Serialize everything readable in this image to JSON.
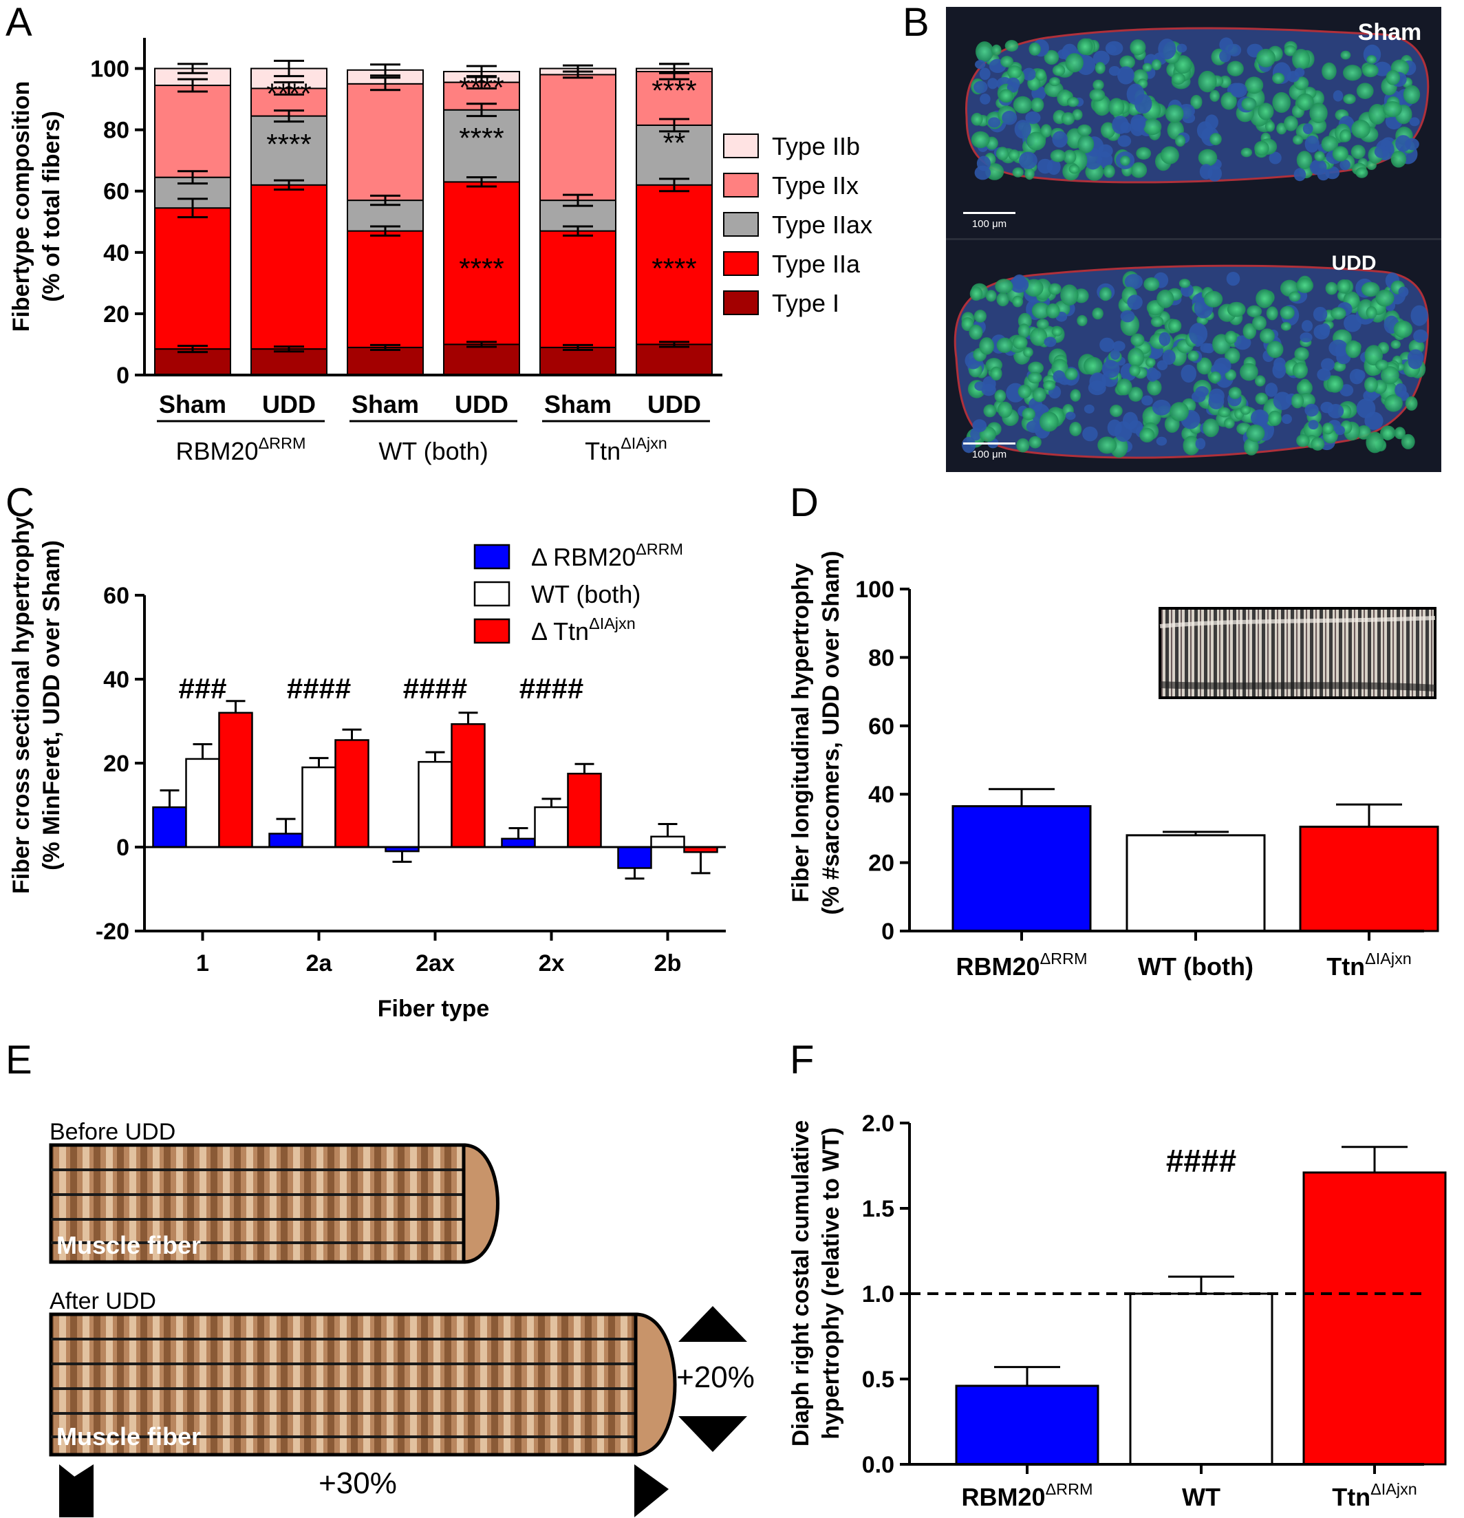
{
  "panels": {
    "A": "A",
    "B": "B",
    "C": "C",
    "D": "D",
    "E": "E",
    "F": "F"
  },
  "colors": {
    "type_i": "#a30000",
    "type_iia": "#ff0000",
    "type_iiax": "#a6a6a6",
    "type_iix": "#ff8080",
    "type_iib": "#ffe3e3",
    "rbm20": "#0000ff",
    "wt": "#ffffff",
    "ttn": "#ff0000",
    "fiber_tan": "#c8946a",
    "micro_bg": "#141826"
  },
  "chart_data": [
    {
      "panel": "A",
      "type": "bar",
      "stacked": true,
      "ylabel_line1": "Fibertype composition",
      "ylabel_line2": "(% of total fibers)",
      "ylim": [
        0,
        110
      ],
      "yticks": [
        "0",
        "20",
        "40",
        "60",
        "80",
        "100"
      ],
      "categories": [
        "Sham",
        "UDD",
        "Sham",
        "UDD",
        "Sham",
        "UDD"
      ],
      "groups": [
        {
          "name": "RBM20",
          "sup": "ΔRRM"
        },
        {
          "name": "WT (both)",
          "sup": ""
        },
        {
          "name": "Ttn",
          "sup": "ΔIAjxn"
        }
      ],
      "series": [
        {
          "name": "Type I",
          "values": [
            8.5,
            8.5,
            9,
            10,
            9,
            10
          ]
        },
        {
          "name": "Type IIa",
          "values": [
            46,
            53.5,
            38,
            53,
            38,
            52
          ]
        },
        {
          "name": "Type IIax",
          "values": [
            10,
            22.5,
            10,
            23.5,
            10,
            19.5
          ]
        },
        {
          "name": "Type IIx",
          "values": [
            30,
            9,
            38,
            9,
            41,
            17.5
          ]
        },
        {
          "name": "Type IIb",
          "values": [
            5.5,
            6.5,
            4.5,
            3.5,
            2,
            1
          ]
        }
      ],
      "legend": [
        "Type IIb",
        "Type IIx",
        "Type IIax",
        "Type IIa",
        "Type I"
      ],
      "annotations": [
        "****",
        "****",
        "****",
        "****",
        "****",
        "****",
        "**",
        "****"
      ]
    },
    {
      "panel": "C",
      "type": "bar",
      "ylabel_line1": "Fiber cross sectional hypertrophy",
      "ylabel_line2": "(% MinFeret, UDD over Sham)",
      "xlabel": "Fiber type",
      "ylim": [
        -20,
        60
      ],
      "yticks": [
        "-20",
        "0",
        "20",
        "40",
        "60"
      ],
      "categories": [
        "1",
        "2a",
        "2ax",
        "2x",
        "2b"
      ],
      "series": [
        {
          "name": "Δ RBM20",
          "sup": "ΔRRM",
          "values": [
            9.5,
            3.2,
            -1,
            2,
            -5
          ],
          "errors": [
            4,
            3.5,
            2.5,
            2.5,
            2.5
          ]
        },
        {
          "name": "WT (both)",
          "sup": "",
          "values": [
            21,
            19,
            20.3,
            9.5,
            2.5
          ],
          "errors": [
            3.5,
            2.2,
            2.3,
            2,
            3
          ]
        },
        {
          "name": "Δ Ttn",
          "sup": "ΔIAjxn",
          "values": [
            32,
            25.5,
            29.3,
            17.5,
            -1.2
          ],
          "errors": [
            2.8,
            2.5,
            2.7,
            2.3,
            5
          ]
        }
      ],
      "annotations": [
        "###",
        "####",
        "####",
        "####"
      ]
    },
    {
      "panel": "D",
      "type": "bar",
      "ylabel_line1": "Fiber longitudinal hypertrophy",
      "ylabel_line2": "(% #sarcomers, UDD over Sham)",
      "ylim": [
        0,
        100
      ],
      "yticks": [
        "0",
        "20",
        "40",
        "60",
        "80",
        "100"
      ],
      "categories": [
        {
          "name": "RBM20",
          "sup": "ΔRRM"
        },
        {
          "name": "WT (both)",
          "sup": ""
        },
        {
          "name": "Ttn",
          "sup": "ΔIAjxn"
        }
      ],
      "values": [
        36.5,
        28,
        30.5
      ],
      "errors": [
        5,
        1,
        6.5
      ]
    },
    {
      "panel": "F",
      "type": "bar",
      "ylabel_line1": "Diaph right costal cumulative",
      "ylabel_line2": "hypertrophy (relative to WT)",
      "ylim": [
        0,
        2.0
      ],
      "yticks": [
        "0.0",
        "0.5",
        "1.0",
        "1.5",
        "2.0"
      ],
      "categories": [
        {
          "name": "RBM20",
          "sup": "ΔRRM"
        },
        {
          "name": "WT",
          "sup": ""
        },
        {
          "name": "Ttn",
          "sup": "ΔIAjxn"
        }
      ],
      "values": [
        0.46,
        1.0,
        1.71
      ],
      "errors": [
        0.11,
        0.1,
        0.15
      ],
      "reference_line": 1.0,
      "annotations": [
        "####"
      ]
    }
  ],
  "micrograph": {
    "top_label": "Sham",
    "bottom_label": "UDD",
    "scale_top": "100 μm",
    "scale_bottom": "100 μm"
  },
  "schematic": {
    "before_label": "Before UDD",
    "after_label": "After UDD",
    "fiber_label_1": "Muscle fiber",
    "fiber_label_2": "Muscle fiber",
    "length_change": "+30%",
    "width_change": "+20%"
  }
}
